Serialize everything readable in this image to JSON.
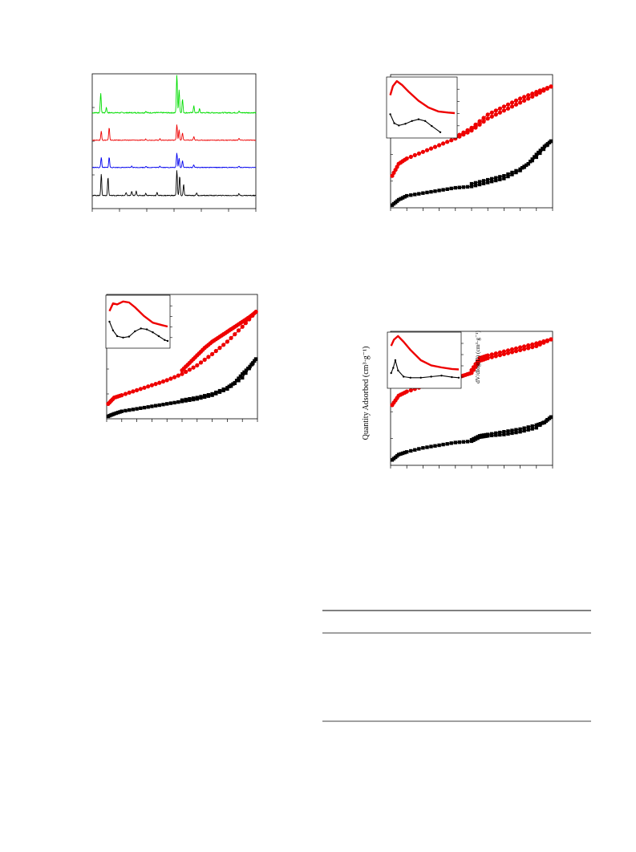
{
  "chart_data": [
    {
      "type": "line",
      "panel": "xrd-patterns",
      "series": [
        {
          "color": "#00dd00",
          "peaks": [
            [
              6.5,
              50
            ],
            [
              7.5,
              14
            ],
            [
              14.5,
              4
            ],
            [
              20,
              100
            ],
            [
              20.4,
              60
            ],
            [
              21,
              35
            ],
            [
              23,
              18
            ],
            [
              24,
              10
            ],
            [
              31,
              4
            ]
          ]
        },
        {
          "color": "#ee0000",
          "peaks": [
            [
              6.6,
              40
            ],
            [
              8,
              55
            ],
            [
              14.5,
              5
            ],
            [
              17,
              6
            ],
            [
              20,
              70
            ],
            [
              20.4,
              45
            ],
            [
              21,
              32
            ],
            [
              23,
              15
            ],
            [
              31,
              8
            ]
          ]
        },
        {
          "color": "#0000ee",
          "peaks": [
            [
              6.6,
              45
            ],
            [
              8,
              45
            ],
            [
              12,
              6
            ],
            [
              14.5,
              5
            ],
            [
              17,
              7
            ],
            [
              20,
              65
            ],
            [
              20.4,
              42
            ],
            [
              21,
              30
            ],
            [
              23,
              12
            ],
            [
              31,
              6
            ]
          ]
        },
        {
          "color": "#000000",
          "peaks": [
            [
              6.6,
              75
            ],
            [
              7.8,
              65
            ],
            [
              11,
              10
            ],
            [
              12,
              15
            ],
            [
              12.8,
              15
            ],
            [
              14.5,
              8
            ],
            [
              16.5,
              10
            ],
            [
              20,
              90
            ],
            [
              20.5,
              70
            ],
            [
              21.2,
              40
            ],
            [
              23.5,
              10
            ],
            [
              31,
              6
            ]
          ]
        }
      ],
      "xlim": [
        5,
        34
      ]
    },
    {
      "type": "line",
      "panel": "isotherm-top-right",
      "series": [
        {
          "color": "#ee0000",
          "adsorption": [
            [
              0.01,
              0.24
            ],
            [
              0.05,
              0.33
            ],
            [
              0.1,
              0.37
            ],
            [
              0.2,
              0.42
            ],
            [
              0.3,
              0.47
            ],
            [
              0.4,
              0.52
            ],
            [
              0.5,
              0.58
            ],
            [
              0.6,
              0.67
            ],
            [
              0.7,
              0.73
            ],
            [
              0.8,
              0.79
            ],
            [
              0.9,
              0.85
            ],
            [
              0.99,
              0.91
            ]
          ],
          "desorption": [
            [
              0.99,
              0.91
            ],
            [
              0.9,
              0.87
            ],
            [
              0.8,
              0.82
            ],
            [
              0.7,
              0.76
            ],
            [
              0.6,
              0.7
            ],
            [
              0.5,
              0.6
            ],
            [
              0.4,
              0.53
            ]
          ]
        },
        {
          "color": "#000000",
          "adsorption": [
            [
              0.01,
              0.02
            ],
            [
              0.05,
              0.06
            ],
            [
              0.1,
              0.09
            ],
            [
              0.2,
              0.11
            ],
            [
              0.3,
              0.13
            ],
            [
              0.4,
              0.15
            ],
            [
              0.5,
              0.16
            ],
            [
              0.6,
              0.19
            ],
            [
              0.7,
              0.22
            ],
            [
              0.8,
              0.28
            ],
            [
              0.9,
              0.38
            ],
            [
              0.99,
              0.5
            ]
          ],
          "desorption": [
            [
              0.99,
              0.5
            ],
            [
              0.95,
              0.46
            ],
            [
              0.9,
              0.4
            ],
            [
              0.85,
              0.33
            ],
            [
              0.8,
              0.29
            ],
            [
              0.7,
              0.24
            ],
            [
              0.6,
              0.21
            ],
            [
              0.5,
              0.18
            ]
          ]
        }
      ],
      "inset": {
        "series": [
          {
            "color": "#ee0000",
            "points": [
              [
                0.02,
                0.72
              ],
              [
                0.06,
                0.88
              ],
              [
                0.12,
                0.97
              ],
              [
                0.2,
                0.9
              ],
              [
                0.3,
                0.78
              ],
              [
                0.45,
                0.62
              ],
              [
                0.6,
                0.5
              ],
              [
                0.75,
                0.43
              ],
              [
                0.9,
                0.41
              ],
              [
                1.0,
                0.4
              ]
            ]
          },
          {
            "color": "#000000",
            "points": [
              [
                0.02,
                0.38
              ],
              [
                0.08,
                0.22
              ],
              [
                0.15,
                0.18
              ],
              [
                0.25,
                0.21
              ],
              [
                0.35,
                0.26
              ],
              [
                0.45,
                0.29
              ],
              [
                0.55,
                0.26
              ],
              [
                0.65,
                0.17
              ],
              [
                0.78,
                0.06
              ]
            ]
          }
        ]
      }
    },
    {
      "type": "line",
      "panel": "isotherm-middle-left",
      "series": [
        {
          "color": "#ee0000",
          "adsorption": [
            [
              0.01,
              0.12
            ],
            [
              0.05,
              0.17
            ],
            [
              0.1,
              0.19
            ],
            [
              0.2,
              0.23
            ],
            [
              0.3,
              0.27
            ],
            [
              0.4,
              0.31
            ],
            [
              0.5,
              0.36
            ],
            [
              0.6,
              0.43
            ],
            [
              0.7,
              0.52
            ],
            [
              0.8,
              0.62
            ],
            [
              0.9,
              0.74
            ],
            [
              0.99,
              0.86
            ]
          ],
          "desorption": [
            [
              0.99,
              0.86
            ],
            [
              0.95,
              0.82
            ],
            [
              0.9,
              0.78
            ],
            [
              0.85,
              0.74
            ],
            [
              0.8,
              0.7
            ],
            [
              0.75,
              0.66
            ],
            [
              0.7,
              0.62
            ],
            [
              0.65,
              0.57
            ],
            [
              0.6,
              0.51
            ],
            [
              0.55,
              0.45
            ],
            [
              0.5,
              0.39
            ]
          ]
        },
        {
          "color": "#000000",
          "adsorption": [
            [
              0.01,
              0.02
            ],
            [
              0.05,
              0.04
            ],
            [
              0.1,
              0.06
            ],
            [
              0.2,
              0.08
            ],
            [
              0.3,
              0.1
            ],
            [
              0.4,
              0.12
            ],
            [
              0.5,
              0.14
            ],
            [
              0.6,
              0.16
            ],
            [
              0.7,
              0.19
            ],
            [
              0.8,
              0.24
            ],
            [
              0.9,
              0.33
            ],
            [
              0.99,
              0.48
            ]
          ],
          "desorption": [
            [
              0.99,
              0.48
            ],
            [
              0.95,
              0.42
            ],
            [
              0.9,
              0.36
            ],
            [
              0.85,
              0.29
            ],
            [
              0.8,
              0.25
            ],
            [
              0.7,
              0.2
            ],
            [
              0.6,
              0.17
            ],
            [
              0.5,
              0.15
            ]
          ]
        }
      ],
      "inset": {
        "series": [
          {
            "color": "#ee0000",
            "points": [
              [
                0.02,
                0.72
              ],
              [
                0.08,
                0.88
              ],
              [
                0.15,
                0.86
              ],
              [
                0.25,
                0.92
              ],
              [
                0.35,
                0.9
              ],
              [
                0.45,
                0.8
              ],
              [
                0.6,
                0.62
              ],
              [
                0.75,
                0.48
              ],
              [
                0.9,
                0.43
              ],
              [
                1.0,
                0.4
              ]
            ]
          },
          {
            "color": "#000000",
            "points": [
              [
                0.02,
                0.5
              ],
              [
                0.08,
                0.32
              ],
              [
                0.15,
                0.2
              ],
              [
                0.25,
                0.17
              ],
              [
                0.35,
                0.19
              ],
              [
                0.45,
                0.3
              ],
              [
                0.55,
                0.36
              ],
              [
                0.65,
                0.34
              ],
              [
                0.75,
                0.28
              ],
              [
                0.85,
                0.2
              ],
              [
                0.95,
                0.12
              ],
              [
                1.0,
                0.1
              ]
            ]
          }
        ]
      }
    },
    {
      "type": "line",
      "panel": "isotherm-bottom-right",
      "ylabel": "Quantity Adsorbed (cm³·g⁻¹)",
      "inset_ylabel": "dV/dlog(D) (cm³·g⁻¹)",
      "series": [
        {
          "color": "#ee0000",
          "adsorption": [
            [
              0.01,
              0.45
            ],
            [
              0.05,
              0.52
            ],
            [
              0.1,
              0.55
            ],
            [
              0.2,
              0.59
            ],
            [
              0.3,
              0.62
            ],
            [
              0.4,
              0.65
            ],
            [
              0.45,
              0.67
            ],
            [
              0.5,
              0.69
            ],
            [
              0.55,
              0.78
            ],
            [
              0.6,
              0.8
            ],
            [
              0.7,
              0.83
            ],
            [
              0.8,
              0.86
            ],
            [
              0.9,
              0.89
            ],
            [
              0.99,
              0.94
            ]
          ],
          "desorption": [
            [
              0.99,
              0.94
            ],
            [
              0.9,
              0.91
            ],
            [
              0.8,
              0.88
            ],
            [
              0.7,
              0.85
            ],
            [
              0.6,
              0.82
            ],
            [
              0.55,
              0.8
            ],
            [
              0.5,
              0.71
            ]
          ]
        },
        {
          "color": "#000000",
          "adsorption": [
            [
              0.01,
              0.04
            ],
            [
              0.05,
              0.08
            ],
            [
              0.1,
              0.1
            ],
            [
              0.2,
              0.13
            ],
            [
              0.3,
              0.15
            ],
            [
              0.4,
              0.17
            ],
            [
              0.5,
              0.18
            ],
            [
              0.55,
              0.21
            ],
            [
              0.6,
              0.22
            ],
            [
              0.7,
              0.23
            ],
            [
              0.8,
              0.25
            ],
            [
              0.9,
              0.28
            ],
            [
              0.99,
              0.36
            ]
          ],
          "desorption": [
            [
              0.99,
              0.36
            ],
            [
              0.95,
              0.32
            ],
            [
              0.9,
              0.3
            ],
            [
              0.8,
              0.27
            ],
            [
              0.7,
              0.25
            ],
            [
              0.6,
              0.23
            ],
            [
              0.55,
              0.22
            ],
            [
              0.5,
              0.19
            ]
          ]
        }
      ],
      "inset": {
        "series": [
          {
            "color": "#ee0000",
            "points": [
              [
                0.02,
                0.78
              ],
              [
                0.06,
                0.9
              ],
              [
                0.12,
                0.97
              ],
              [
                0.2,
                0.86
              ],
              [
                0.3,
                0.7
              ],
              [
                0.45,
                0.5
              ],
              [
                0.6,
                0.4
              ],
              [
                0.75,
                0.36
              ],
              [
                0.9,
                0.33
              ],
              [
                1.0,
                0.32
              ]
            ]
          },
          {
            "color": "#000000",
            "points": [
              [
                0.02,
                0.25
              ],
              [
                0.05,
                0.35
              ],
              [
                0.08,
                0.5
              ],
              [
                0.12,
                0.3
              ],
              [
                0.2,
                0.18
              ],
              [
                0.3,
                0.16
              ],
              [
                0.45,
                0.16
              ],
              [
                0.6,
                0.18
              ],
              [
                0.75,
                0.2
              ],
              [
                0.9,
                0.17
              ],
              [
                1.0,
                0.16
              ]
            ]
          }
        ]
      }
    }
  ],
  "table": {
    "rule_count": 3
  }
}
